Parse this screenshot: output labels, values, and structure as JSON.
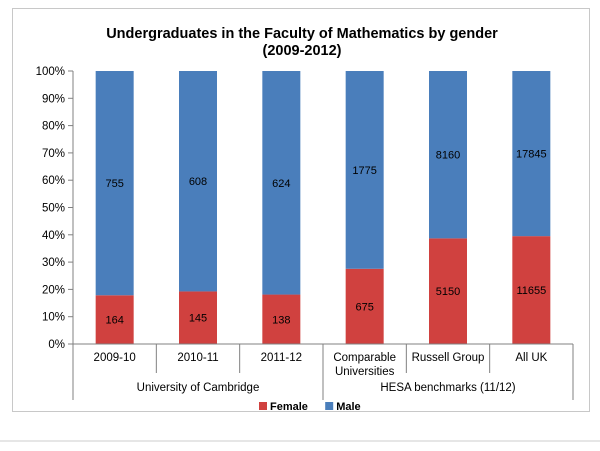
{
  "chart_data": {
    "type": "bar",
    "stacked": "percent",
    "title": "Undergraduates in the Faculty of Mathematics by gender",
    "subtitle": "(2009-2012)",
    "categories": [
      "2009-10",
      "2010-11",
      "2011-12",
      "Comparable Universities",
      "Russell Group",
      "All UK"
    ],
    "category_lines": [
      [
        "2009-10"
      ],
      [
        "2010-11"
      ],
      [
        "2011-12"
      ],
      [
        "Comparable",
        "Universities"
      ],
      [
        "Russell Group"
      ],
      [
        "All UK"
      ]
    ],
    "groups": [
      {
        "label": "University of Cambridge",
        "span": [
          0,
          2
        ]
      },
      {
        "label": "HESA benchmarks (11/12)",
        "span": [
          3,
          5
        ]
      }
    ],
    "series": [
      {
        "name": "Female",
        "color": "#D0413F",
        "values": [
          164,
          145,
          138,
          675,
          5150,
          11655
        ]
      },
      {
        "name": "Male",
        "color": "#4A7EBB",
        "values": [
          755,
          608,
          624,
          1775,
          8160,
          17845
        ]
      }
    ],
    "ylim": [
      0,
      100
    ],
    "yticks": [
      "0%",
      "10%",
      "20%",
      "30%",
      "40%",
      "50%",
      "60%",
      "70%",
      "80%",
      "90%",
      "100%"
    ],
    "grid": false,
    "legend": "bottom"
  }
}
